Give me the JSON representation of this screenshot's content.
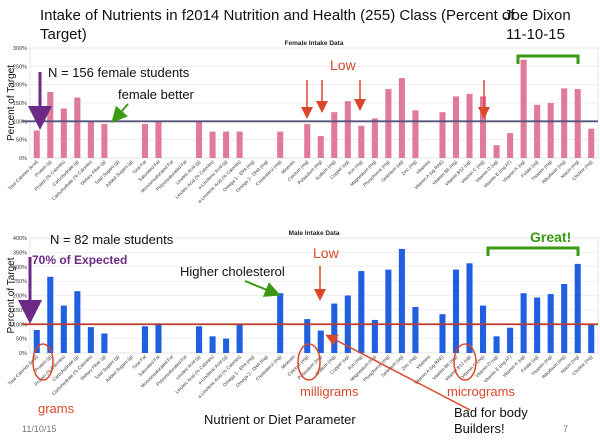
{
  "slide": {
    "title": "Intake of Nutrients in f2014 Nutrition and Health (255) Class (Percent of Target)",
    "author": "Joe Dixon",
    "date": "11-10-15",
    "footer_date": "11/10/15",
    "slide_number": "7",
    "xaxis_title": "Nutrient or Diet Parameter",
    "ylabel": "Percent of Target"
  },
  "annotations": {
    "female_n": "N = 156 female students",
    "female_better": "female better",
    "low_female": "Low",
    "male_n": "N = 82 male students",
    "expected": "70% of Expected",
    "higher_cholesterol": "Higher cholesterol",
    "low_male": "Low",
    "great": "Great!",
    "grams": "grams",
    "milligrams": "milligrams",
    "micrograms": "micrograms",
    "bad_note": "Bad for body Builders!"
  },
  "colors": {
    "female": "#e07a9c",
    "male": "#1f5fe0",
    "female_refline": "#555577",
    "male_refline": "#c0392b",
    "arrow_red": "#d9482a",
    "arrow_green": "#3a9a14",
    "arrow_purple": "#6a2a86"
  },
  "chart_data": [
    {
      "type": "bar",
      "title": "Female Intake Data",
      "ylabel": "Percent of Target",
      "ylim": [
        0,
        300
      ],
      "yticks": [
        "0%",
        "50%",
        "100%",
        "150%",
        "200%",
        "250%",
        "300%"
      ],
      "reference_line": 100,
      "categories": [
        "Total Calories (kcal)",
        "Protein (g)",
        "Protein (% Calories)",
        "Carbohydrate (g)",
        "Carbohydrate (% Calories)",
        "Dietary Fiber (g)",
        "Total Sugars (g)",
        "Added Sugars (g)",
        "Total Fat",
        "Saturated Fat",
        "Monounsaturated Fat",
        "Polyunsaturated Fat",
        "Linoleic Acid (g)",
        "Linoleic Acid (% Calories)",
        "a-Linolenic Acid (g)",
        "a-Linolenic Acid (% Calories)",
        "Omega 3 - EPA (mg)",
        "Omega 3 - DHA (mg)",
        "Cholesterol (mg)",
        "Minerals",
        "Calcium (mg)",
        "Potassium (mg)",
        "Sodium (mg)",
        "Copper (ug)",
        "Iron (mg)",
        "Magnesium (mg)",
        "Phosphorus (mg)",
        "Selenium (ug)",
        "Zinc (mg)",
        "Vitamins",
        "Vitamin A (ug RAE)",
        "Vitamin B6 (mg)",
        "Vitamin B12 (ug)",
        "Vitamin C (mg)",
        "Vitamin D (ug)",
        "Vitamin E (mg AT)",
        "Vitamin K (ug)",
        "Folate (ug)",
        "Thiamin (mg)",
        "Riboflavin (mg)",
        "Niacin (mg)",
        "Choline (mg)"
      ],
      "values": [
        75,
        180,
        135,
        165,
        100,
        93,
        0,
        0,
        93,
        100,
        0,
        0,
        100,
        72,
        72,
        72,
        0,
        0,
        72,
        0,
        93,
        60,
        125,
        155,
        88,
        108,
        188,
        218,
        130,
        0,
        125,
        168,
        175,
        168,
        35,
        68,
        268,
        145,
        150,
        190,
        188,
        80
      ]
    },
    {
      "type": "bar",
      "title": "Male Intake Data",
      "ylabel": "Percent of Target",
      "ylim": [
        0,
        400
      ],
      "yticks": [
        "0%",
        "50%",
        "100%",
        "150%",
        "200%",
        "250%",
        "300%",
        "350%",
        "400%"
      ],
      "reference_line": 100,
      "categories": [
        "Total Calories (kcal)",
        "Protein (g)",
        "Protein (% Calories)",
        "Carbohydrate (g)",
        "Carbohydrate (% Calories)",
        "Dietary Fiber (g)",
        "Total Sugars (g)",
        "Added Sugars (g)",
        "Total Fat",
        "Saturated Fat",
        "Monounsaturated Fat",
        "Polyunsaturated Fat",
        "Linoleic Acid (g)",
        "Linoleic Acid (% Calories)",
        "a-Linolenic Acid (g)",
        "a-Linolenic Acid (% Calories)",
        "Omega 3 - EPA (mg)",
        "Omega 3 - DHA (mg)",
        "Cholesterol (mg)",
        "Minerals",
        "Calcium (mg)",
        "Potassium (mg)",
        "Sodium (mg)",
        "Copper (ug)",
        "Iron (mg)",
        "Magnesium (mg)",
        "Phosphorus (mg)",
        "Selenium (ug)",
        "Zinc (mg)",
        "Vitamins",
        "Vitamin A (ug RAE)",
        "Vitamin B6 (mg)",
        "Vitamin B12 (ug)",
        "Vitamin C (mg)",
        "Vitamin D (ug)",
        "Vitamin E (mg AT)",
        "Vitamin K (ug)",
        "Folate (ug)",
        "Thiamin (mg)",
        "Riboflavin (mg)",
        "Niacin (mg)",
        "Choline (mg)"
      ],
      "values": [
        80,
        265,
        165,
        215,
        90,
        68,
        0,
        0,
        93,
        103,
        0,
        0,
        93,
        58,
        50,
        100,
        0,
        0,
        208,
        0,
        118,
        78,
        172,
        200,
        285,
        115,
        290,
        362,
        160,
        0,
        135,
        290,
        312,
        165,
        58,
        88,
        208,
        193,
        205,
        240,
        310,
        100
      ]
    }
  ]
}
